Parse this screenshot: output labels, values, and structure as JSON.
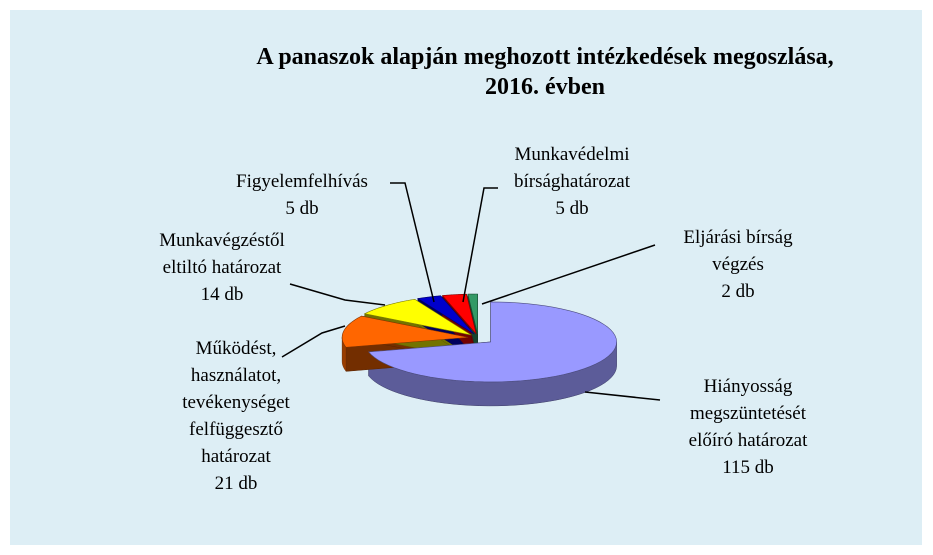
{
  "chart_data": {
    "type": "pie",
    "title": "A panaszok alapján meghozott intézkedések megoszlása,\n2016. évben",
    "categories": [
      "Hiányosság\nmegszüntetését\nelőíró határozat",
      "Működést,\nhasználatot,\ntevékenységet\nfelfüggesztő\nhatározat",
      "Munkavégzéstől\neltiltó határozat",
      "Figyelemfelhívás",
      "Munkavédelmi\nbírsághatározat",
      "Eljárási bírság\nvégzés"
    ],
    "values": [
      115,
      21,
      14,
      5,
      5,
      2
    ],
    "value_labels": [
      "115 db",
      "21 db",
      "14 db",
      "5 db",
      "5 db",
      "2 db"
    ],
    "colors": [
      "#9999ff",
      "#ff6600",
      "#ffff00",
      "#0000cc",
      "#ff0000",
      "#339966"
    ]
  }
}
